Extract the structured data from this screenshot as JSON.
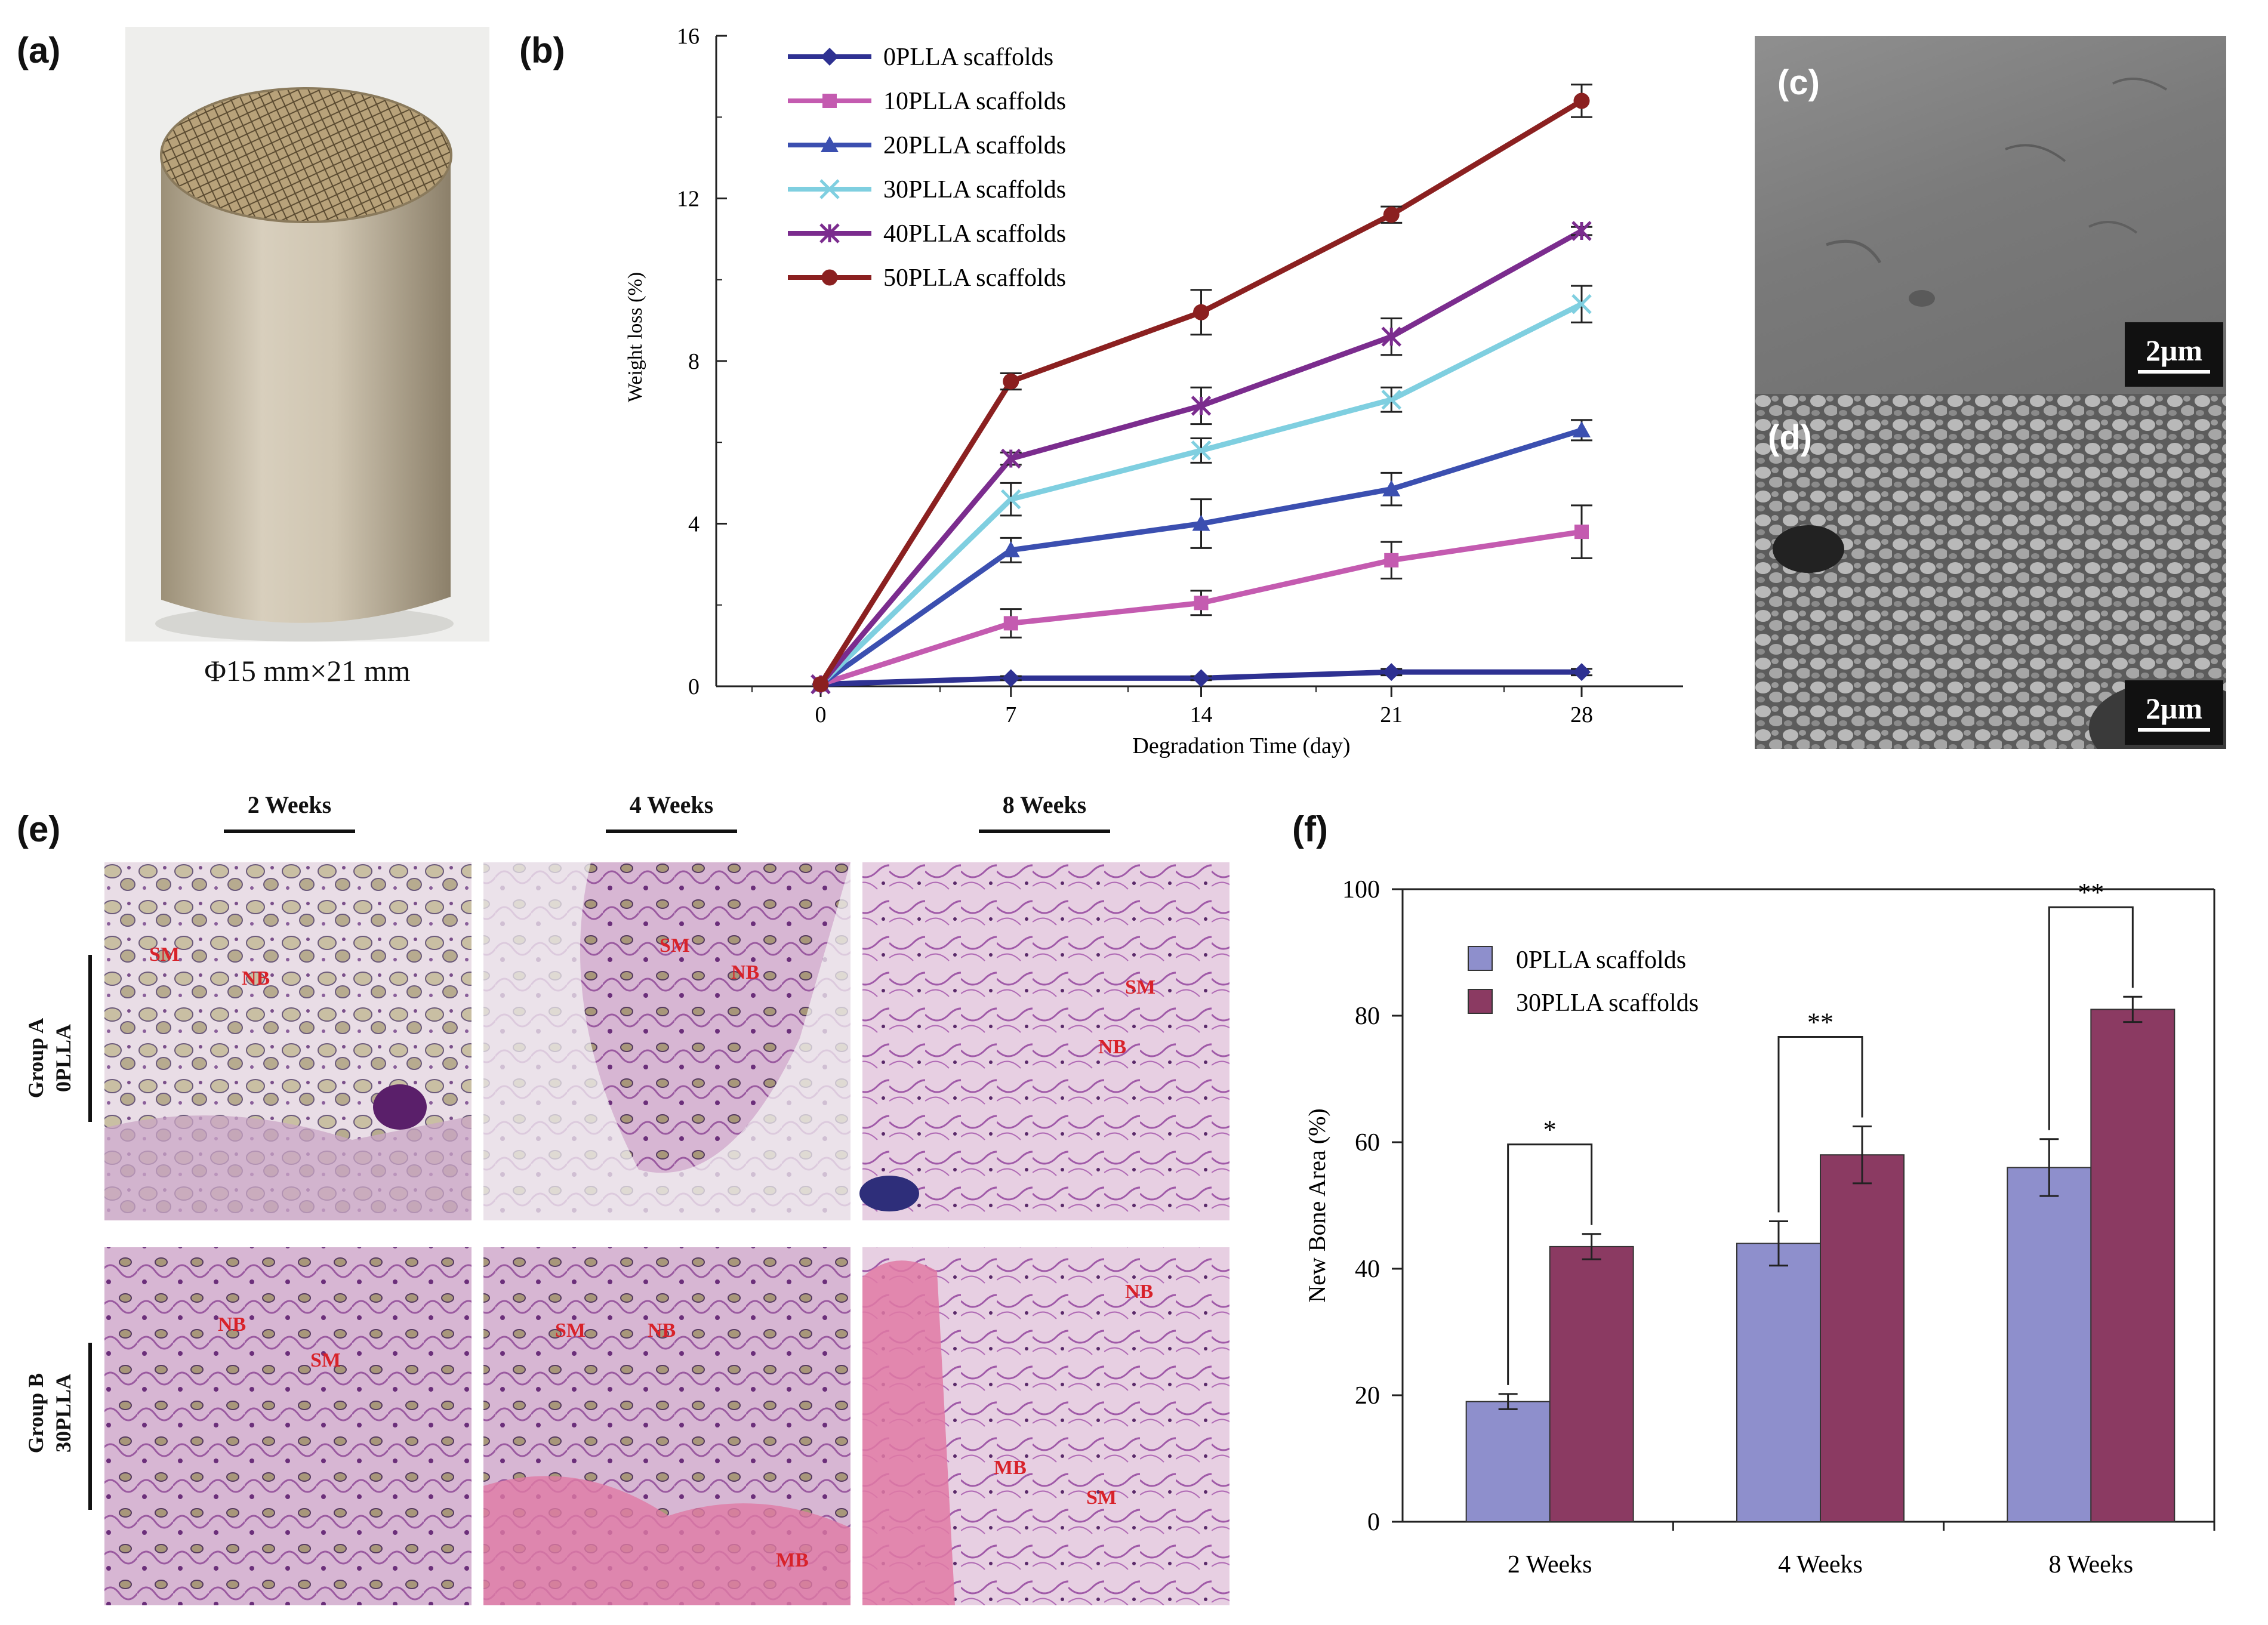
{
  "panels": {
    "a": {
      "label": "(a)",
      "caption": "Φ15 mm×21 mm"
    },
    "b": {
      "label": "(b)"
    },
    "c": {
      "label": "(c)",
      "scalebar": "2μm"
    },
    "d": {
      "label": "(d)",
      "scalebar": "2μm"
    },
    "e": {
      "label": "(e)",
      "columns": [
        "2 Weeks",
        "4 Weeks",
        "8 Weeks"
      ],
      "rows": [
        {
          "line1": "Group A",
          "line2": "0PLLA"
        },
        {
          "line1": "Group B",
          "line2": "30PLLA"
        }
      ],
      "annotations": {
        "a2_sm": "SM",
        "a2_nb": "NB",
        "a4_sm": "SM",
        "a4_nb": "NB",
        "a8_sm": "SM",
        "a8_nb": "NB",
        "b2_nb": "NB",
        "b2_sm": "SM",
        "b4_sm": "SM",
        "b4_nb": "NB",
        "b4_mb": "MB",
        "b8_nb": "NB",
        "b8_mb": "MB",
        "b8_sm": "SM"
      }
    },
    "f": {
      "label": "(f)"
    }
  },
  "chart_data": [
    {
      "id": "b",
      "type": "line",
      "xlabel": "Degradation Time (day)",
      "ylabel": "Weight loss (%)",
      "x": [
        0,
        7,
        14,
        21,
        28
      ],
      "xticks": [
        "0",
        "7",
        "14",
        "21",
        "28"
      ],
      "ylim": [
        0,
        16
      ],
      "yticks": [
        "0",
        "4",
        "8",
        "12",
        "16"
      ],
      "legend_position": "top-left",
      "grid": false,
      "series": [
        {
          "name": "0PLLA scaffolds",
          "marker": "diamond",
          "color": "#2e3192",
          "values": [
            0.05,
            0.2,
            0.2,
            0.35,
            0.35
          ],
          "err": [
            0,
            0.05,
            0.05,
            0.08,
            0.08
          ]
        },
        {
          "name": "10PLLA scaffolds",
          "marker": "square",
          "color": "#c45bb0",
          "values": [
            0.05,
            1.55,
            2.05,
            3.1,
            3.8
          ],
          "err": [
            0,
            0.35,
            0.3,
            0.45,
            0.65
          ]
        },
        {
          "name": "20PLLA scaffolds",
          "marker": "triangle",
          "color": "#3b4fb0",
          "values": [
            0.05,
            3.35,
            4.0,
            4.85,
            6.3
          ],
          "err": [
            0,
            0.3,
            0.6,
            0.4,
            0.25
          ]
        },
        {
          "name": "30PLLA scaffolds",
          "marker": "x",
          "color": "#7fcfe0",
          "values": [
            0.05,
            4.6,
            5.8,
            7.05,
            9.4
          ],
          "err": [
            0,
            0.4,
            0.3,
            0.3,
            0.45
          ]
        },
        {
          "name": "40PLLA scaffolds",
          "marker": "star",
          "color": "#7b2c8e",
          "values": [
            0.05,
            5.6,
            6.9,
            8.6,
            11.2
          ],
          "err": [
            0,
            0.15,
            0.45,
            0.45,
            0.1
          ]
        },
        {
          "name": "50PLLA scaffolds",
          "marker": "circle",
          "color": "#8b2020",
          "values": [
            0.05,
            7.5,
            9.2,
            11.6,
            14.4
          ],
          "err": [
            0,
            0.2,
            0.55,
            0.2,
            0.4
          ]
        }
      ]
    },
    {
      "id": "f",
      "type": "bar",
      "categories": [
        "2 Weeks",
        "4 Weeks",
        "8 Weeks"
      ],
      "ylabel": "New Bone Area (%)",
      "ylim": [
        0,
        100
      ],
      "yticks": [
        "0",
        "20",
        "40",
        "60",
        "80",
        "100"
      ],
      "legend_position": "top-left",
      "grid": false,
      "series": [
        {
          "name": "0PLLA scaffolds",
          "color": "#8e8fcc",
          "values": [
            19,
            44,
            56
          ],
          "err": [
            1.2,
            3.5,
            4.5
          ]
        },
        {
          "name": "30PLLA scaffolds",
          "color": "#8b3a62",
          "values": [
            43.5,
            58,
            81
          ],
          "err": [
            2.0,
            4.5,
            2.0
          ]
        }
      ],
      "significance": [
        "*",
        "**",
        "**"
      ]
    }
  ]
}
